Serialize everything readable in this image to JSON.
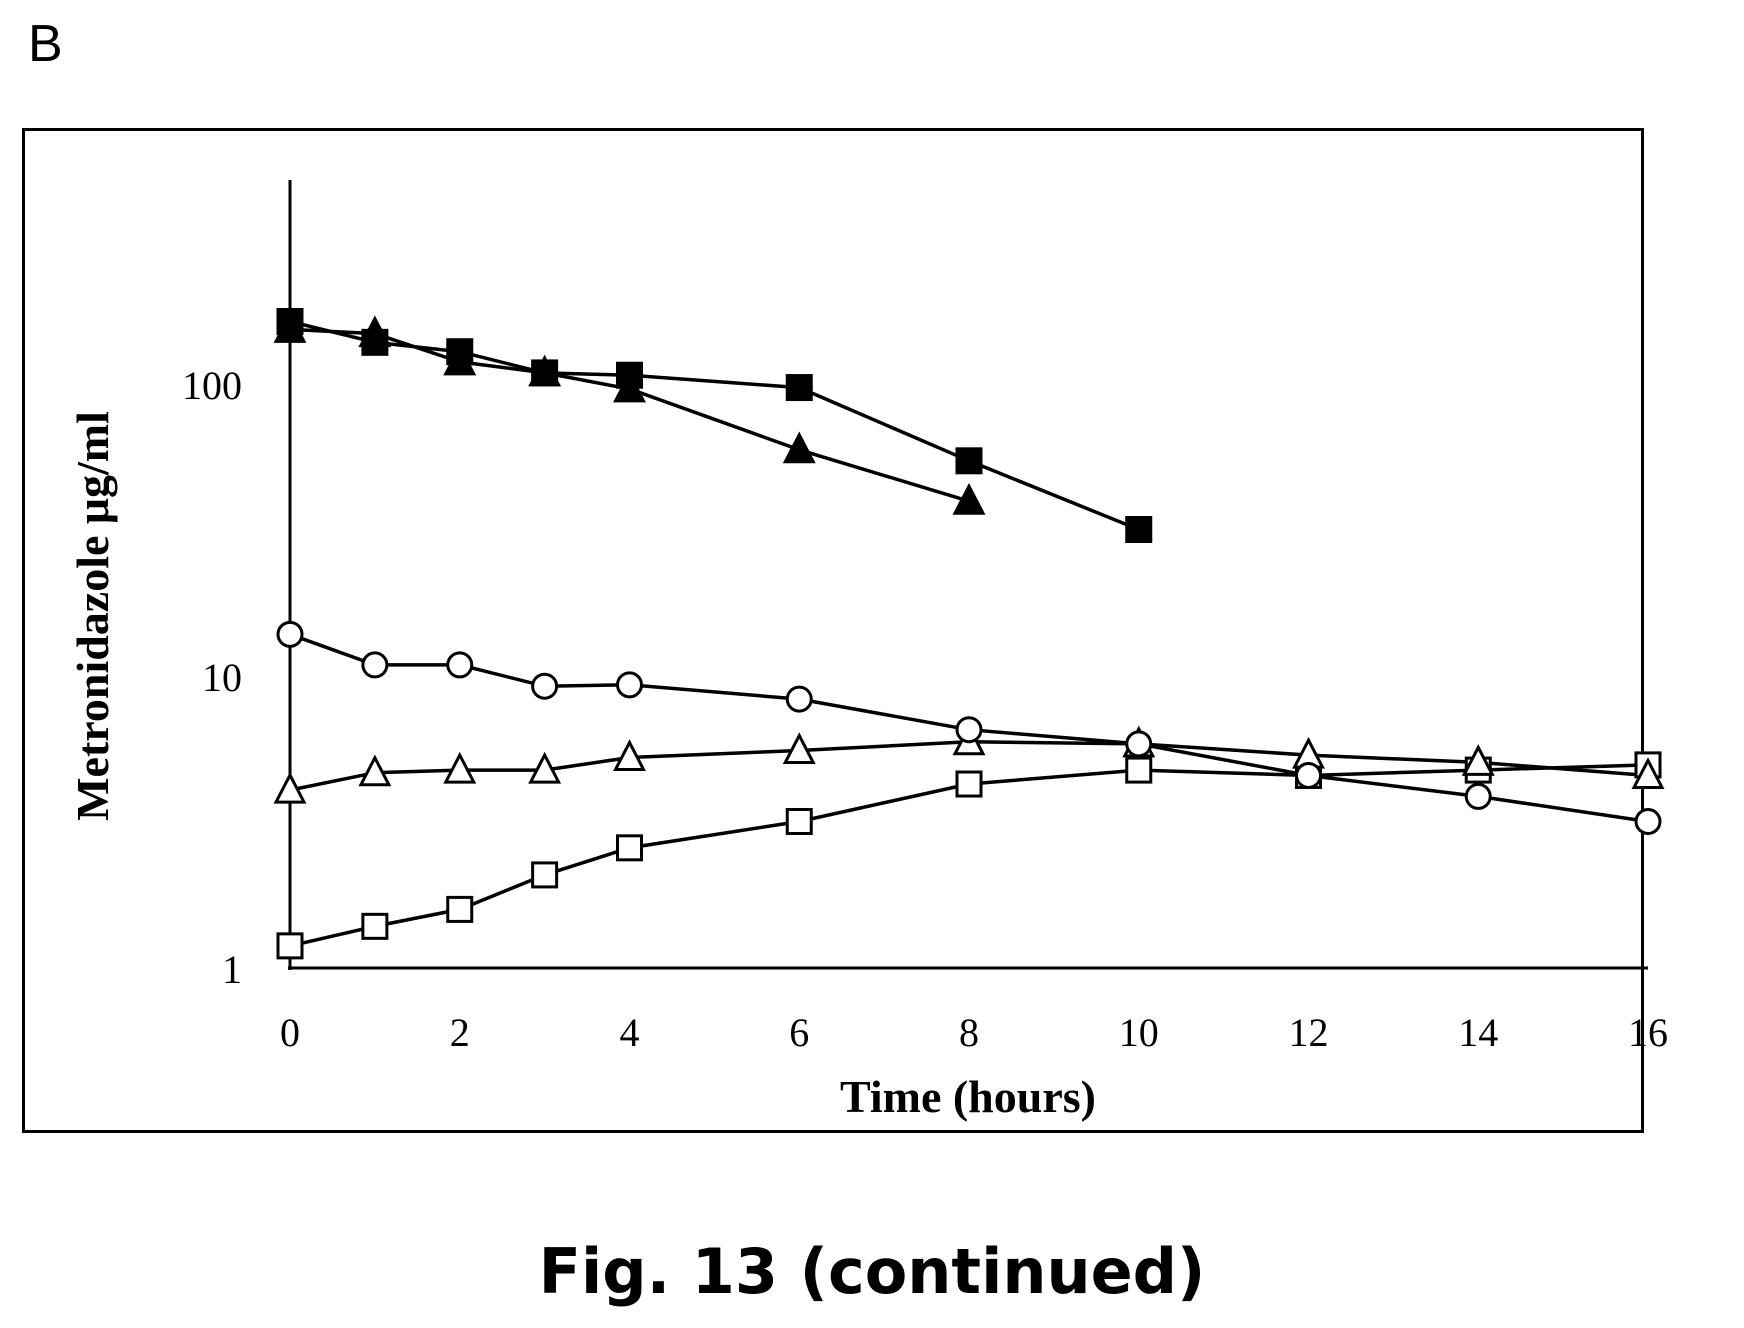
{
  "panel_label": "B",
  "caption": "Fig. 13 (continued)",
  "chart_data": {
    "type": "line",
    "title": "",
    "xlabel": "Time (hours)",
    "ylabel": "Metronidazole  μg/ml",
    "x_ticks": [
      "0",
      "2",
      "4",
      "6",
      "8",
      "10",
      "12",
      "14",
      "16"
    ],
    "x_tick_values": [
      0,
      2,
      4,
      6,
      8,
      10,
      12,
      14,
      16
    ],
    "y_ticks": [
      "1",
      "10",
      "100"
    ],
    "y_tick_values": [
      1,
      10,
      100
    ],
    "y_scale": "log",
    "xlim": [
      0,
      16
    ],
    "ylim": [
      1,
      500
    ],
    "grid": false,
    "legend": "none",
    "series": [
      {
        "marker": "filled-square",
        "x": [
          0,
          1,
          2,
          3,
          4,
          6,
          8,
          10
        ],
        "y": [
          165,
          140,
          130,
          110,
          108,
          98,
          55,
          32
        ]
      },
      {
        "marker": "filled-triangle",
        "x": [
          0,
          1,
          2,
          3,
          4,
          6,
          8
        ],
        "y": [
          155,
          150,
          120,
          110,
          97,
          60,
          40
        ]
      },
      {
        "marker": "open-circle",
        "x": [
          0,
          1,
          2,
          3,
          4,
          6,
          8,
          10,
          12,
          14,
          16
        ],
        "y": [
          14,
          11,
          11,
          9.3,
          9.4,
          8.4,
          6.6,
          5.9,
          4.6,
          3.9,
          3.2
        ]
      },
      {
        "marker": "open-triangle",
        "x": [
          0,
          1,
          2,
          3,
          4,
          6,
          8,
          10,
          12,
          14,
          16
        ],
        "y": [
          4.1,
          4.7,
          4.8,
          4.8,
          5.3,
          5.6,
          6.0,
          5.9,
          5.4,
          5.1,
          4.6
        ]
      },
      {
        "marker": "open-square",
        "x": [
          0,
          1,
          2,
          3,
          4,
          6,
          8,
          10,
          12,
          14,
          16
        ],
        "y": [
          1.2,
          1.4,
          1.6,
          2.1,
          2.6,
          3.2,
          4.3,
          4.8,
          4.6,
          4.8,
          5.0
        ]
      }
    ]
  }
}
